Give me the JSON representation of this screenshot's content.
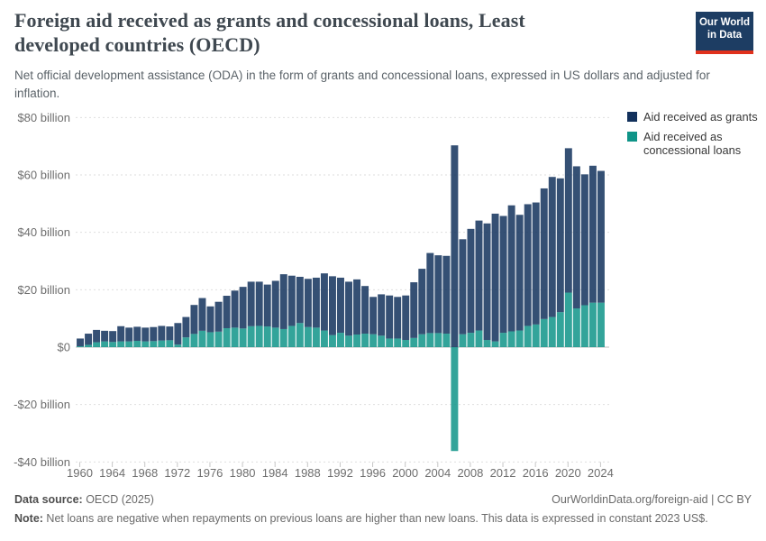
{
  "header": {
    "title": "Foreign aid received as grants and concessional loans, Least developed countries (OECD)",
    "subtitle": "Net official development assistance (ODA) in the form of grants and concessional loans, expressed in US dollars and adjusted for inflation.",
    "logo_line1": "Our World",
    "logo_line2": "in Data",
    "logo_bg_color": "#1d3d63",
    "logo_accent_color": "#e0311c"
  },
  "legend": {
    "items": [
      {
        "label": "Aid received as grants",
        "color": "#12315c"
      },
      {
        "label": "Aid received as concessional loans",
        "color": "#0f9488"
      }
    ]
  },
  "chart_data": {
    "type": "bar",
    "stacked": true,
    "title": "Foreign aid received as grants and concessional loans, Least developed countries (OECD)",
    "unit": "US$ billion (constant 2023 US$)",
    "ylim": [
      -40,
      80
    ],
    "grid": "dashed horizontal",
    "legend_position": "top-right",
    "years": [
      1960,
      1961,
      1962,
      1963,
      1964,
      1965,
      1966,
      1967,
      1968,
      1969,
      1970,
      1971,
      1972,
      1973,
      1974,
      1975,
      1976,
      1977,
      1978,
      1979,
      1980,
      1981,
      1982,
      1983,
      1984,
      1985,
      1986,
      1987,
      1988,
      1989,
      1990,
      1991,
      1992,
      1993,
      1994,
      1995,
      1996,
      1997,
      1998,
      1999,
      2000,
      2001,
      2002,
      2003,
      2004,
      2005,
      2006,
      2007,
      2008,
      2009,
      2010,
      2011,
      2012,
      2013,
      2014,
      2015,
      2016,
      2017,
      2018,
      2019,
      2020,
      2021,
      2022,
      2023,
      2024
    ],
    "series": [
      {
        "name": "Aid received as grants",
        "color": "#12315c",
        "values": [
          2.7,
          3.9,
          4.3,
          3.7,
          3.8,
          5.3,
          4.8,
          4.9,
          4.8,
          4.9,
          5.1,
          4.8,
          7.5,
          7.1,
          10.1,
          11.4,
          9.0,
          10.4,
          11.3,
          12.9,
          14.5,
          15.5,
          15.4,
          14.6,
          16.3,
          19.1,
          17.5,
          16.1,
          16.8,
          17.4,
          19.9,
          20.5,
          19.2,
          18.8,
          19.2,
          16.6,
          13.0,
          14.4,
          15.0,
          14.5,
          15.5,
          19.4,
          22.8,
          27.9,
          27.1,
          27.1,
          70.3,
          33.1,
          36.2,
          38.3,
          40.6,
          44.5,
          40.7,
          43.9,
          40.3,
          42.4,
          42.5,
          45.5,
          48.8,
          46.6,
          50.3,
          49.5,
          45.6,
          47.7,
          45.9
        ]
      },
      {
        "name": "Aid received as concessional loans",
        "color": "#0f9488",
        "values": [
          0.3,
          0.8,
          1.7,
          2.0,
          1.8,
          2.0,
          2.0,
          2.2,
          2.0,
          2.1,
          2.3,
          2.4,
          0.9,
          3.4,
          4.6,
          5.7,
          5.2,
          5.4,
          6.6,
          6.8,
          6.5,
          7.3,
          7.4,
          7.2,
          6.8,
          6.3,
          7.4,
          8.4,
          7.0,
          6.8,
          5.8,
          4.2,
          5.0,
          4.0,
          4.4,
          4.7,
          4.5,
          4.0,
          3.0,
          3.0,
          2.5,
          3.2,
          4.5,
          4.9,
          4.9,
          4.7,
          -36.2,
          4.5,
          5.0,
          5.8,
          2.5,
          2.0,
          5.0,
          5.5,
          5.8,
          7.4,
          7.9,
          9.8,
          10.5,
          12.2,
          19.0,
          13.5,
          14.6,
          15.5,
          15.5
        ]
      }
    ],
    "yticks": [
      80,
      60,
      40,
      20,
      0,
      -20,
      -40
    ],
    "ytick_labels": [
      "$80 billion",
      "$60 billion",
      "$40 billion",
      "$20 billion",
      "$0",
      "-$20 billion",
      "-$40 billion"
    ],
    "xticks": [
      1960,
      1964,
      1968,
      1972,
      1976,
      1980,
      1984,
      1988,
      1992,
      1996,
      2000,
      2004,
      2008,
      2012,
      2016,
      2020,
      2024
    ]
  },
  "footer": {
    "source_label": "Data source:",
    "source_value": " OECD (2025)",
    "url": "OurWorldinData.org/foreign-aid | CC BY",
    "note_label": "Note:",
    "note_value": " Net loans are negative when repayments on previous loans are higher than new loans. This data is expressed in constant 2023 US$."
  }
}
